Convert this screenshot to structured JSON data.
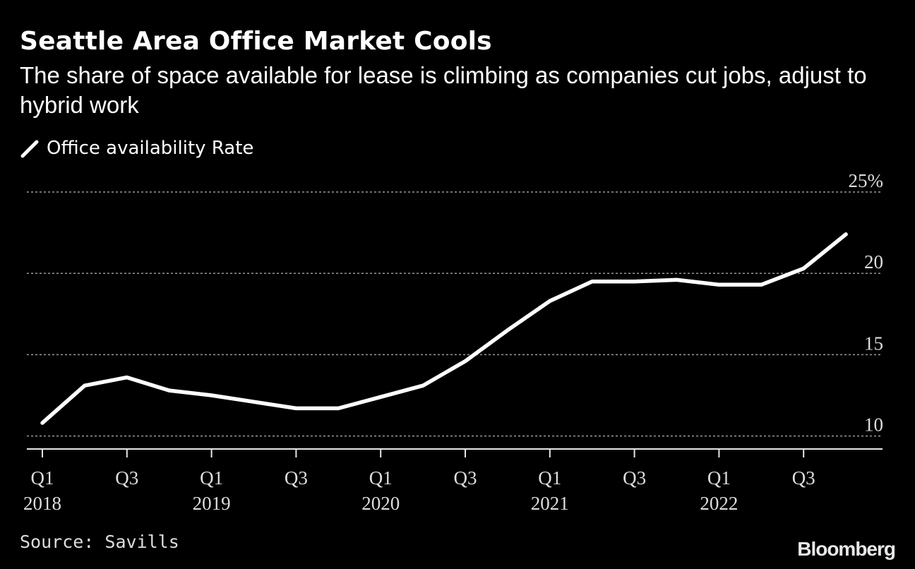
{
  "header": {
    "title": "Seattle Area Office Market Cools",
    "subtitle": "The share of space available for lease is climbing as companies cut jobs, adjust to hybrid work"
  },
  "legend": {
    "label": "Office availability Rate"
  },
  "footer": {
    "source": "Source: Savills",
    "brand": "Bloomberg"
  },
  "colors": {
    "background": "#000000",
    "line": "#ffffff",
    "grid": "#999999"
  },
  "chart_data": {
    "type": "line",
    "title": "Seattle Area Office Market Cools",
    "xlabel": "",
    "ylabel": "",
    "ylim": [
      9.2,
      25
    ],
    "yticks": [
      10,
      15,
      20,
      25
    ],
    "ytick_labels": [
      "10",
      "15",
      "20",
      "25%"
    ],
    "grid": true,
    "legend_position": "top-left",
    "x": [
      "Q1 2018",
      "Q2 2018",
      "Q3 2018",
      "Q4 2018",
      "Q1 2019",
      "Q2 2019",
      "Q3 2019",
      "Q4 2019",
      "Q1 2020",
      "Q2 2020",
      "Q3 2020",
      "Q4 2020",
      "Q1 2021",
      "Q2 2021",
      "Q3 2021",
      "Q4 2021",
      "Q1 2022",
      "Q2 2022",
      "Q3 2022",
      "Q4 2022"
    ],
    "x_tick_labels": [
      {
        "index": 0,
        "quarter": "Q1",
        "year": "2018"
      },
      {
        "index": 2,
        "quarter": "Q3",
        "year": ""
      },
      {
        "index": 4,
        "quarter": "Q1",
        "year": "2019"
      },
      {
        "index": 6,
        "quarter": "Q3",
        "year": ""
      },
      {
        "index": 8,
        "quarter": "Q1",
        "year": "2020"
      },
      {
        "index": 10,
        "quarter": "Q3",
        "year": ""
      },
      {
        "index": 12,
        "quarter": "Q1",
        "year": "2021"
      },
      {
        "index": 14,
        "quarter": "Q3",
        "year": ""
      },
      {
        "index": 16,
        "quarter": "Q1",
        "year": "2022"
      },
      {
        "index": 18,
        "quarter": "Q3",
        "year": ""
      }
    ],
    "series": [
      {
        "name": "Office availability Rate",
        "values": [
          10.8,
          13.1,
          13.6,
          12.8,
          12.5,
          12.1,
          11.7,
          11.7,
          12.4,
          13.1,
          14.6,
          16.5,
          18.3,
          19.5,
          19.5,
          19.6,
          19.3,
          19.3,
          20.3,
          22.4
        ]
      }
    ]
  }
}
